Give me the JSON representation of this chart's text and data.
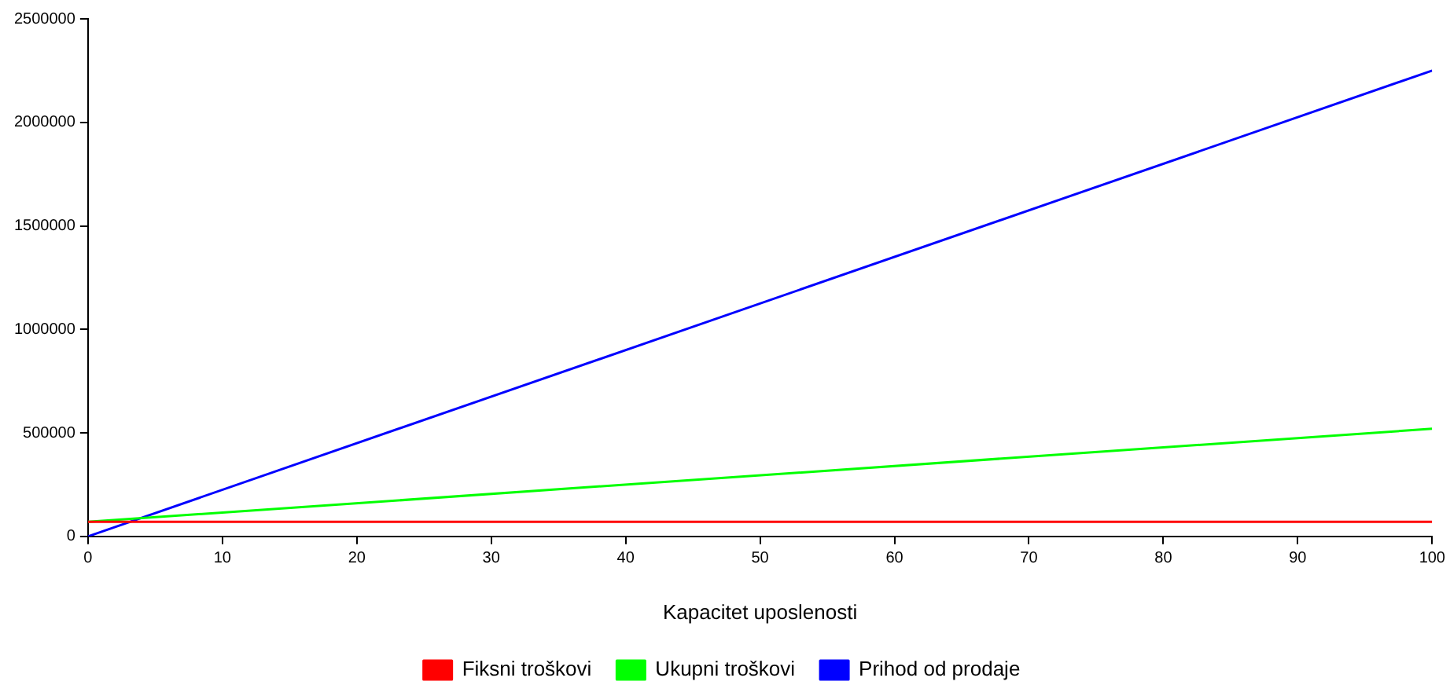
{
  "chart_data": {
    "type": "line",
    "xlabel": "Kapacitet uposlenosti",
    "x": [
      0,
      100
    ],
    "xlim": [
      0,
      100
    ],
    "xticks": [
      0,
      10,
      20,
      30,
      40,
      50,
      60,
      70,
      80,
      90,
      100
    ],
    "ylim": [
      0,
      2500000
    ],
    "yticks": [
      0,
      500000,
      1000000,
      1500000,
      2000000,
      2500000
    ],
    "series": [
      {
        "name": "Fiksni troškovi",
        "color": "#ff0000",
        "values": [
          70000,
          70000
        ]
      },
      {
        "name": "Ukupni troškovi",
        "color": "#00ff00",
        "values": [
          70000,
          520000
        ]
      },
      {
        "name": "Prihod od prodaje",
        "color": "#0000ff",
        "values": [
          0,
          2250000
        ]
      }
    ],
    "grid": false,
    "legend": "bottom",
    "marker": "none",
    "line_style": "solid"
  }
}
